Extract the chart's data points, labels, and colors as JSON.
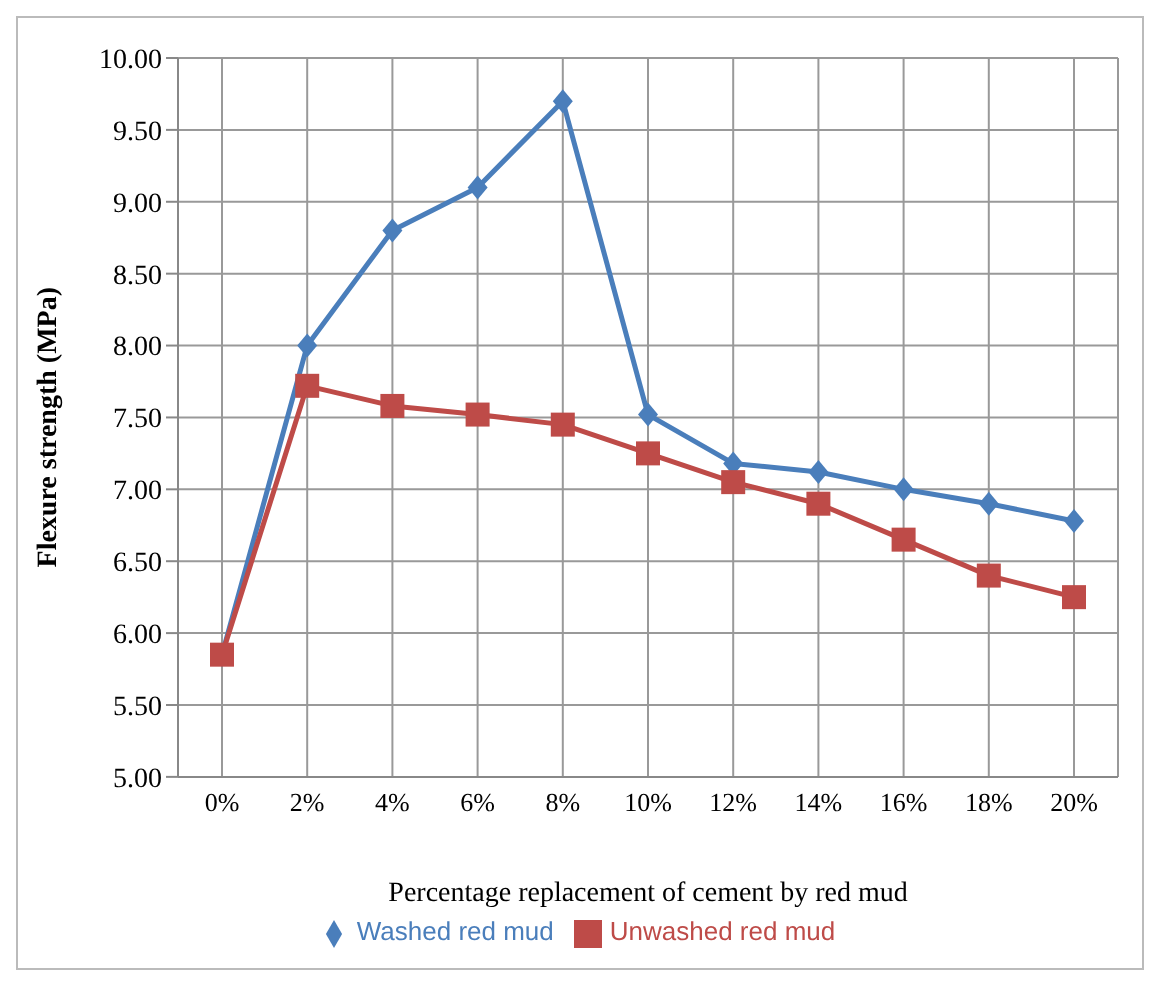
{
  "chart_data": {
    "type": "line",
    "xlabel": "Percentage replacement of cement by red mud",
    "ylabel": "Flexure strength (MPa)",
    "categories": [
      "0%",
      "2%",
      "4%",
      "6%",
      "8%",
      "10%",
      "12%",
      "14%",
      "16%",
      "18%",
      "20%"
    ],
    "series": [
      {
        "name": "Washed red mud",
        "color": "#4a7ebb",
        "marker": "diamond",
        "values": [
          5.85,
          8.0,
          8.8,
          9.1,
          9.7,
          7.52,
          7.18,
          7.12,
          7.0,
          6.9,
          6.78
        ]
      },
      {
        "name": "Unwashed red mud",
        "color": "#be4b48",
        "marker": "square",
        "values": [
          5.85,
          7.72,
          7.58,
          7.52,
          7.45,
          7.25,
          7.05,
          6.9,
          6.65,
          6.4,
          6.25
        ]
      }
    ],
    "ylim": [
      5,
      10
    ],
    "yticks": [
      {
        "value": 5,
        "label": "5.00"
      },
      {
        "value": 5.5,
        "label": "5.50"
      },
      {
        "value": 6,
        "label": "6.00"
      },
      {
        "value": 6.5,
        "label": "6.50"
      },
      {
        "value": 7,
        "label": "7.00"
      },
      {
        "value": 7.5,
        "label": "7.50"
      },
      {
        "value": 8,
        "label": "8.00"
      },
      {
        "value": 8.5,
        "label": "8.50"
      },
      {
        "value": 9,
        "label": "9.00"
      },
      {
        "value": 9.5,
        "label": "9.50"
      },
      {
        "value": 10,
        "label": "10.00"
      }
    ],
    "grid": true,
    "legend": "bottom"
  }
}
